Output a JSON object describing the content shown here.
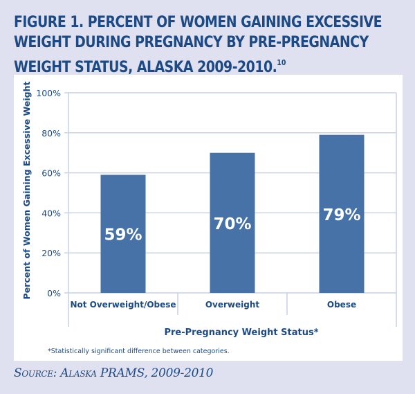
{
  "figure": {
    "title": "FIGURE 1. PERCENT OF WOMEN GAINING EXCESSIVE WEIGHT DURING PREGNANCY BY PRE-PREGNANCY WEIGHT STATUS, ALASKA 2009-2010.",
    "title_lines": [
      "FIGURE 1. PERCENT OF WOMEN GAINING EXCESSIVE",
      "WEIGHT DURING PREGNANCY BY PRE-PREGNANCY",
      "WEIGHT STATUS, ALASKA 2009-2010."
    ],
    "title_superscript": "10",
    "footnote": "*Statistically significant difference between categories.",
    "source": "Source: Alaska PRAMS, 2009-2010"
  },
  "colors": {
    "background": "#dfe1f0",
    "panel": "#ffffff",
    "bar": "#4672a8",
    "bar_label": "#ffffff",
    "text": "#1d4a84",
    "gridline": "#c9d1ea"
  },
  "chart_data": {
    "type": "bar",
    "title": "Percent of Women Gaining Excessive Weight During Pregnancy by Pre-Pregnancy Weight Status, Alaska 2009-2010",
    "categories": [
      "Not Overweight/Obese",
      "Overweight",
      "Obese"
    ],
    "values": [
      59,
      70,
      79
    ],
    "data_labels": [
      "59%",
      "70%",
      "79%"
    ],
    "xlabel": "Pre-Pregnancy Weight Status*",
    "ylabel": "Percent of Women Gaining Excessive Weight",
    "ylim": [
      0,
      100
    ],
    "yticks": [
      0,
      20,
      40,
      60,
      80,
      100
    ],
    "ytick_labels": [
      "0%",
      "20%",
      "40%",
      "60%",
      "80%",
      "100%"
    ],
    "grid": true,
    "legend": "none"
  }
}
